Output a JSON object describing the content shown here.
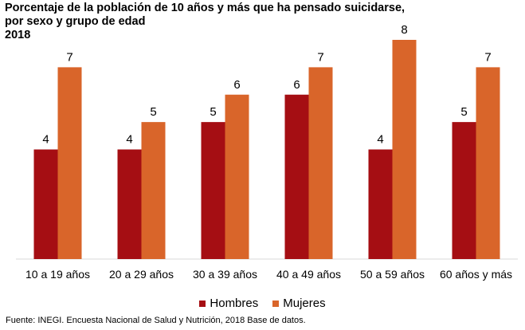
{
  "title_lines": [
    "Porcentaje de la población de 10 años y más que ha pensado suicidarse,",
    "por sexo y grupo de edad",
    "2018"
  ],
  "source": "Fuente: INEGI. Encuesta Nacional de Salud y Nutrición, 2018 Base de datos.",
  "colors": {
    "hombres": "#A50E13",
    "mujeres": "#D9652A"
  },
  "chart_data": {
    "type": "bar",
    "title": "Porcentaje de la población de 10 años y más que ha pensado suicidarse, por sexo y grupo de edad 2018",
    "categories": [
      "10 a 19 años",
      "20 a 29 años",
      "30 a 39 años",
      "40 a 49 años",
      "50 a 59 años",
      "60 años y más"
    ],
    "series": [
      {
        "name": "Hombres",
        "values": [
          4,
          4,
          5,
          6,
          4,
          5
        ],
        "color": "#A50E13"
      },
      {
        "name": "Mujeres",
        "values": [
          7,
          5,
          6,
          7,
          8,
          7
        ],
        "color": "#D9652A"
      }
    ],
    "ylim": [
      0,
      8
    ],
    "grid": false,
    "legend": "bottom"
  }
}
